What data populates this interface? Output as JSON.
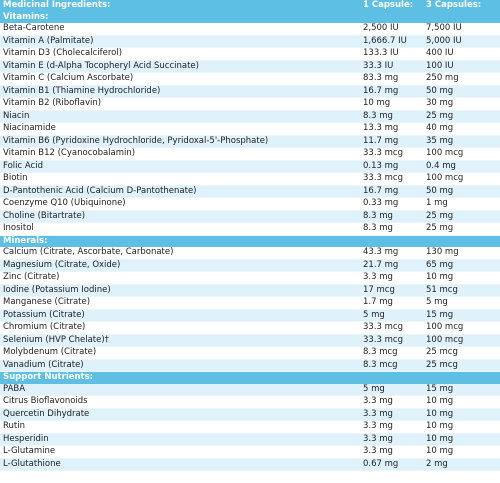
{
  "header": {
    "ingredient": "Medicinal Ingredients:",
    "dose1": "1 Capsule:",
    "dose3": "3 Capsules:"
  },
  "sections": [
    {
      "title": "Vitamins:",
      "items": [
        {
          "name": "Beta-Carotene",
          "one": "2,500 IU",
          "three": "7,500 IU"
        },
        {
          "name": "Vitamin A (Palmitate)",
          "one": "1,666.7 IU",
          "three": "5,000 IU"
        },
        {
          "name": "Vitamin D3 (Cholecalciferol)",
          "one": "133.3 IU",
          "three": "400 IU"
        },
        {
          "name": "Vitamin E (d-Alpha Tocopheryl Acid Succinate)",
          "one": "33.3 IU",
          "three": "100 IU"
        },
        {
          "name": "Vitamin C (Calcium Ascorbate)",
          "one": "83.3 mg",
          "three": "250 mg"
        },
        {
          "name": "Vitamin B1 (Thiamine Hydrochloride)",
          "one": "16.7 mg",
          "three": "50 mg"
        },
        {
          "name": "Vitamin B2 (Riboflavin)",
          "one": "10 mg",
          "three": "30 mg"
        },
        {
          "name": "Niacin",
          "one": "8.3 mg",
          "three": "25 mg"
        },
        {
          "name": "Niacinamide",
          "one": "13.3 mg",
          "three": "40 mg"
        },
        {
          "name": "Vitamin B6 (Pyridoxine Hydrochloride, Pyridoxal-5'-Phosphate)",
          "one": "11.7 mg",
          "three": "35 mg"
        },
        {
          "name": "Vitamin B12 (Cyanocobalamin)",
          "one": "33.3 mcg",
          "three": "100 mcg"
        },
        {
          "name": "Folic Acid",
          "one": "0.13 mg",
          "three": "0.4 mg"
        },
        {
          "name": "Biotin",
          "one": "33.3 mcg",
          "three": "100 mcg"
        },
        {
          "name": "D-Pantothenic Acid (Calcium D-Pantothenate)",
          "one": "16.7 mg",
          "three": "50 mg"
        },
        {
          "name": "Coenzyme Q10 (Ubiquinone)",
          "one": "0.33 mg",
          "three": "1 mg"
        },
        {
          "name": "Choline (Bitartrate)",
          "one": "8.3 mg",
          "three": "25 mg"
        },
        {
          "name": "Inositol",
          "one": "8.3 mg",
          "three": "25 mg"
        }
      ]
    },
    {
      "title": "Minerals:",
      "items": [
        {
          "name": "Calcium (Citrate, Ascorbate, Carbonate)",
          "one": "43.3 mg",
          "three": "130 mg"
        },
        {
          "name": "Magnesium (Citrate, Oxide)",
          "one": "21.7 mg",
          "three": "65 mg"
        },
        {
          "name": "Zinc (Citrate)",
          "one": "3.3 mg",
          "three": "10 mg"
        },
        {
          "name": "Iodine (Potassium Iodine)",
          "one": "17 mcg",
          "three": "51 mcg"
        },
        {
          "name": "Manganese (Citrate)",
          "one": "1.7 mg",
          "three": "5 mg"
        },
        {
          "name": "Potassium (Citrate)",
          "one": "5 mg",
          "three": "15 mg"
        },
        {
          "name": "Chromium (Citrate)",
          "one": "33.3 mcg",
          "three": "100 mcg"
        },
        {
          "name": "Selenium (HVP Chelate)†",
          "one": "33.3 mcg",
          "three": "100 mcg"
        },
        {
          "name": "Molybdenum (Citrate)",
          "one": "8.3 mcg",
          "three": "25 mcg"
        },
        {
          "name": "Vanadium (Citrate)",
          "one": "8.3 mcg",
          "three": "25 mcg"
        }
      ]
    },
    {
      "title": "Support Nutrients:",
      "items": [
        {
          "name": "PABA",
          "one": "5 mg",
          "three": "15 mg"
        },
        {
          "name": "Citrus Bioflavonoids",
          "one": "3.3 mg",
          "three": "10 mg"
        },
        {
          "name": "Quercetin Dihydrate",
          "one": "3.3 mg",
          "three": "10 mg"
        },
        {
          "name": "Rutin",
          "one": "3.3 mg",
          "three": "10 mg"
        },
        {
          "name": "Hesperidin",
          "one": "3.3 mg",
          "three": "10 mg"
        },
        {
          "name": "L-Glutamine",
          "one": "3.3 mg",
          "three": "10 mg"
        },
        {
          "name": "L-Glutathione",
          "one": "0.67 mg",
          "three": "2 mg"
        }
      ]
    }
  ]
}
